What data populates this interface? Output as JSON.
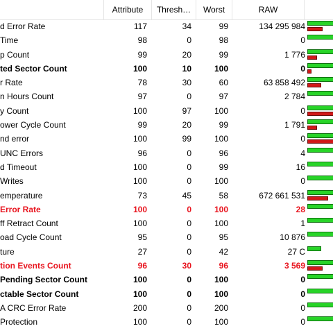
{
  "columns": {
    "name": "",
    "attribute": "Attribute",
    "threshold": "Thresh…",
    "worst": "Worst",
    "raw": "RAW",
    "bar": ""
  },
  "colors": {
    "green_bar": "#28d428",
    "red_bar": "#d01818",
    "critical_text": "#e8141e"
  },
  "rows": [
    {
      "name": "d Error Rate",
      "attribute": "117",
      "threshold": "34",
      "worst": "99",
      "raw": "134 295 984",
      "style": "normal",
      "health": 1,
      "raw_level": 0.55
    },
    {
      "name": "Time",
      "attribute": "98",
      "threshold": "0",
      "worst": "98",
      "raw": "0",
      "style": "normal",
      "health": 1,
      "raw_level": 0
    },
    {
      "name": "p Count",
      "attribute": "99",
      "threshold": "20",
      "worst": "99",
      "raw": "1 776",
      "style": "normal",
      "health": 1,
      "raw_level": 0.35
    },
    {
      "name": "ted Sector Count",
      "attribute": "100",
      "threshold": "10",
      "worst": "100",
      "raw": "0",
      "style": "bold",
      "health": 1,
      "raw_level": 0.15
    },
    {
      "name": "r Rate",
      "attribute": "78",
      "threshold": "30",
      "worst": "60",
      "raw": "63 858 492",
      "style": "normal",
      "health": 1,
      "raw_level": 0.5
    },
    {
      "name": "n Hours Count",
      "attribute": "97",
      "threshold": "0",
      "worst": "97",
      "raw": "2 784",
      "style": "normal",
      "health": 1,
      "raw_level": 0
    },
    {
      "name": "y Count",
      "attribute": "100",
      "threshold": "97",
      "worst": "100",
      "raw": "0",
      "style": "normal",
      "health": 1,
      "raw_level": 1
    },
    {
      "name": "ower Cycle Count",
      "attribute": "99",
      "threshold": "20",
      "worst": "99",
      "raw": "1 791",
      "style": "normal",
      "health": 1,
      "raw_level": 0.35
    },
    {
      "name": "nd error",
      "attribute": "100",
      "threshold": "99",
      "worst": "100",
      "raw": "0",
      "style": "normal",
      "health": 1,
      "raw_level": 1
    },
    {
      "name": "UNC Errors",
      "attribute": "96",
      "threshold": "0",
      "worst": "96",
      "raw": "4",
      "style": "normal",
      "health": 1,
      "raw_level": 0
    },
    {
      "name": "d Timeout",
      "attribute": "100",
      "threshold": "0",
      "worst": "99",
      "raw": "16",
      "style": "normal",
      "health": 1,
      "raw_level": 0
    },
    {
      "name": "Writes",
      "attribute": "100",
      "threshold": "0",
      "worst": "100",
      "raw": "0",
      "style": "normal",
      "health": 1,
      "raw_level": 0
    },
    {
      "name": "emperature",
      "attribute": "73",
      "threshold": "45",
      "worst": "58",
      "raw": "672 661 531",
      "style": "normal",
      "health": 1,
      "raw_level": 0.75
    },
    {
      "name": "Error Rate",
      "attribute": "100",
      "threshold": "0",
      "worst": "100",
      "raw": "28",
      "style": "red",
      "health": 1,
      "raw_level": 0
    },
    {
      "name": "ff Retract Count",
      "attribute": "100",
      "threshold": "0",
      "worst": "100",
      "raw": "1",
      "style": "normal",
      "health": 1,
      "raw_level": 0
    },
    {
      "name": "oad Cycle Count",
      "attribute": "95",
      "threshold": "0",
      "worst": "95",
      "raw": "10 876",
      "style": "normal",
      "health": 1,
      "raw_level": 0
    },
    {
      "name": "ture",
      "attribute": "27",
      "threshold": "0",
      "worst": "42",
      "raw": "27 C",
      "style": "normal",
      "health": 0.5,
      "raw_level": 0
    },
    {
      "name": "tion Events Count",
      "attribute": "96",
      "threshold": "30",
      "worst": "96",
      "raw": "3 569",
      "style": "red",
      "health": 1,
      "raw_level": 0.55
    },
    {
      "name": "Pending Sector Count",
      "attribute": "100",
      "threshold": "0",
      "worst": "100",
      "raw": "0",
      "style": "bold",
      "health": 1,
      "raw_level": 0
    },
    {
      "name": "ctable Sector Count",
      "attribute": "100",
      "threshold": "0",
      "worst": "100",
      "raw": "0",
      "style": "bold",
      "health": 1,
      "raw_level": 0
    },
    {
      "name": "A CRC Error Rate",
      "attribute": "200",
      "threshold": "0",
      "worst": "200",
      "raw": "0",
      "style": "normal",
      "health": 1,
      "raw_level": 0
    },
    {
      "name": "Protection",
      "attribute": "100",
      "threshold": "0",
      "worst": "100",
      "raw": "0",
      "style": "normal",
      "health": 1,
      "raw_level": 0
    }
  ]
}
